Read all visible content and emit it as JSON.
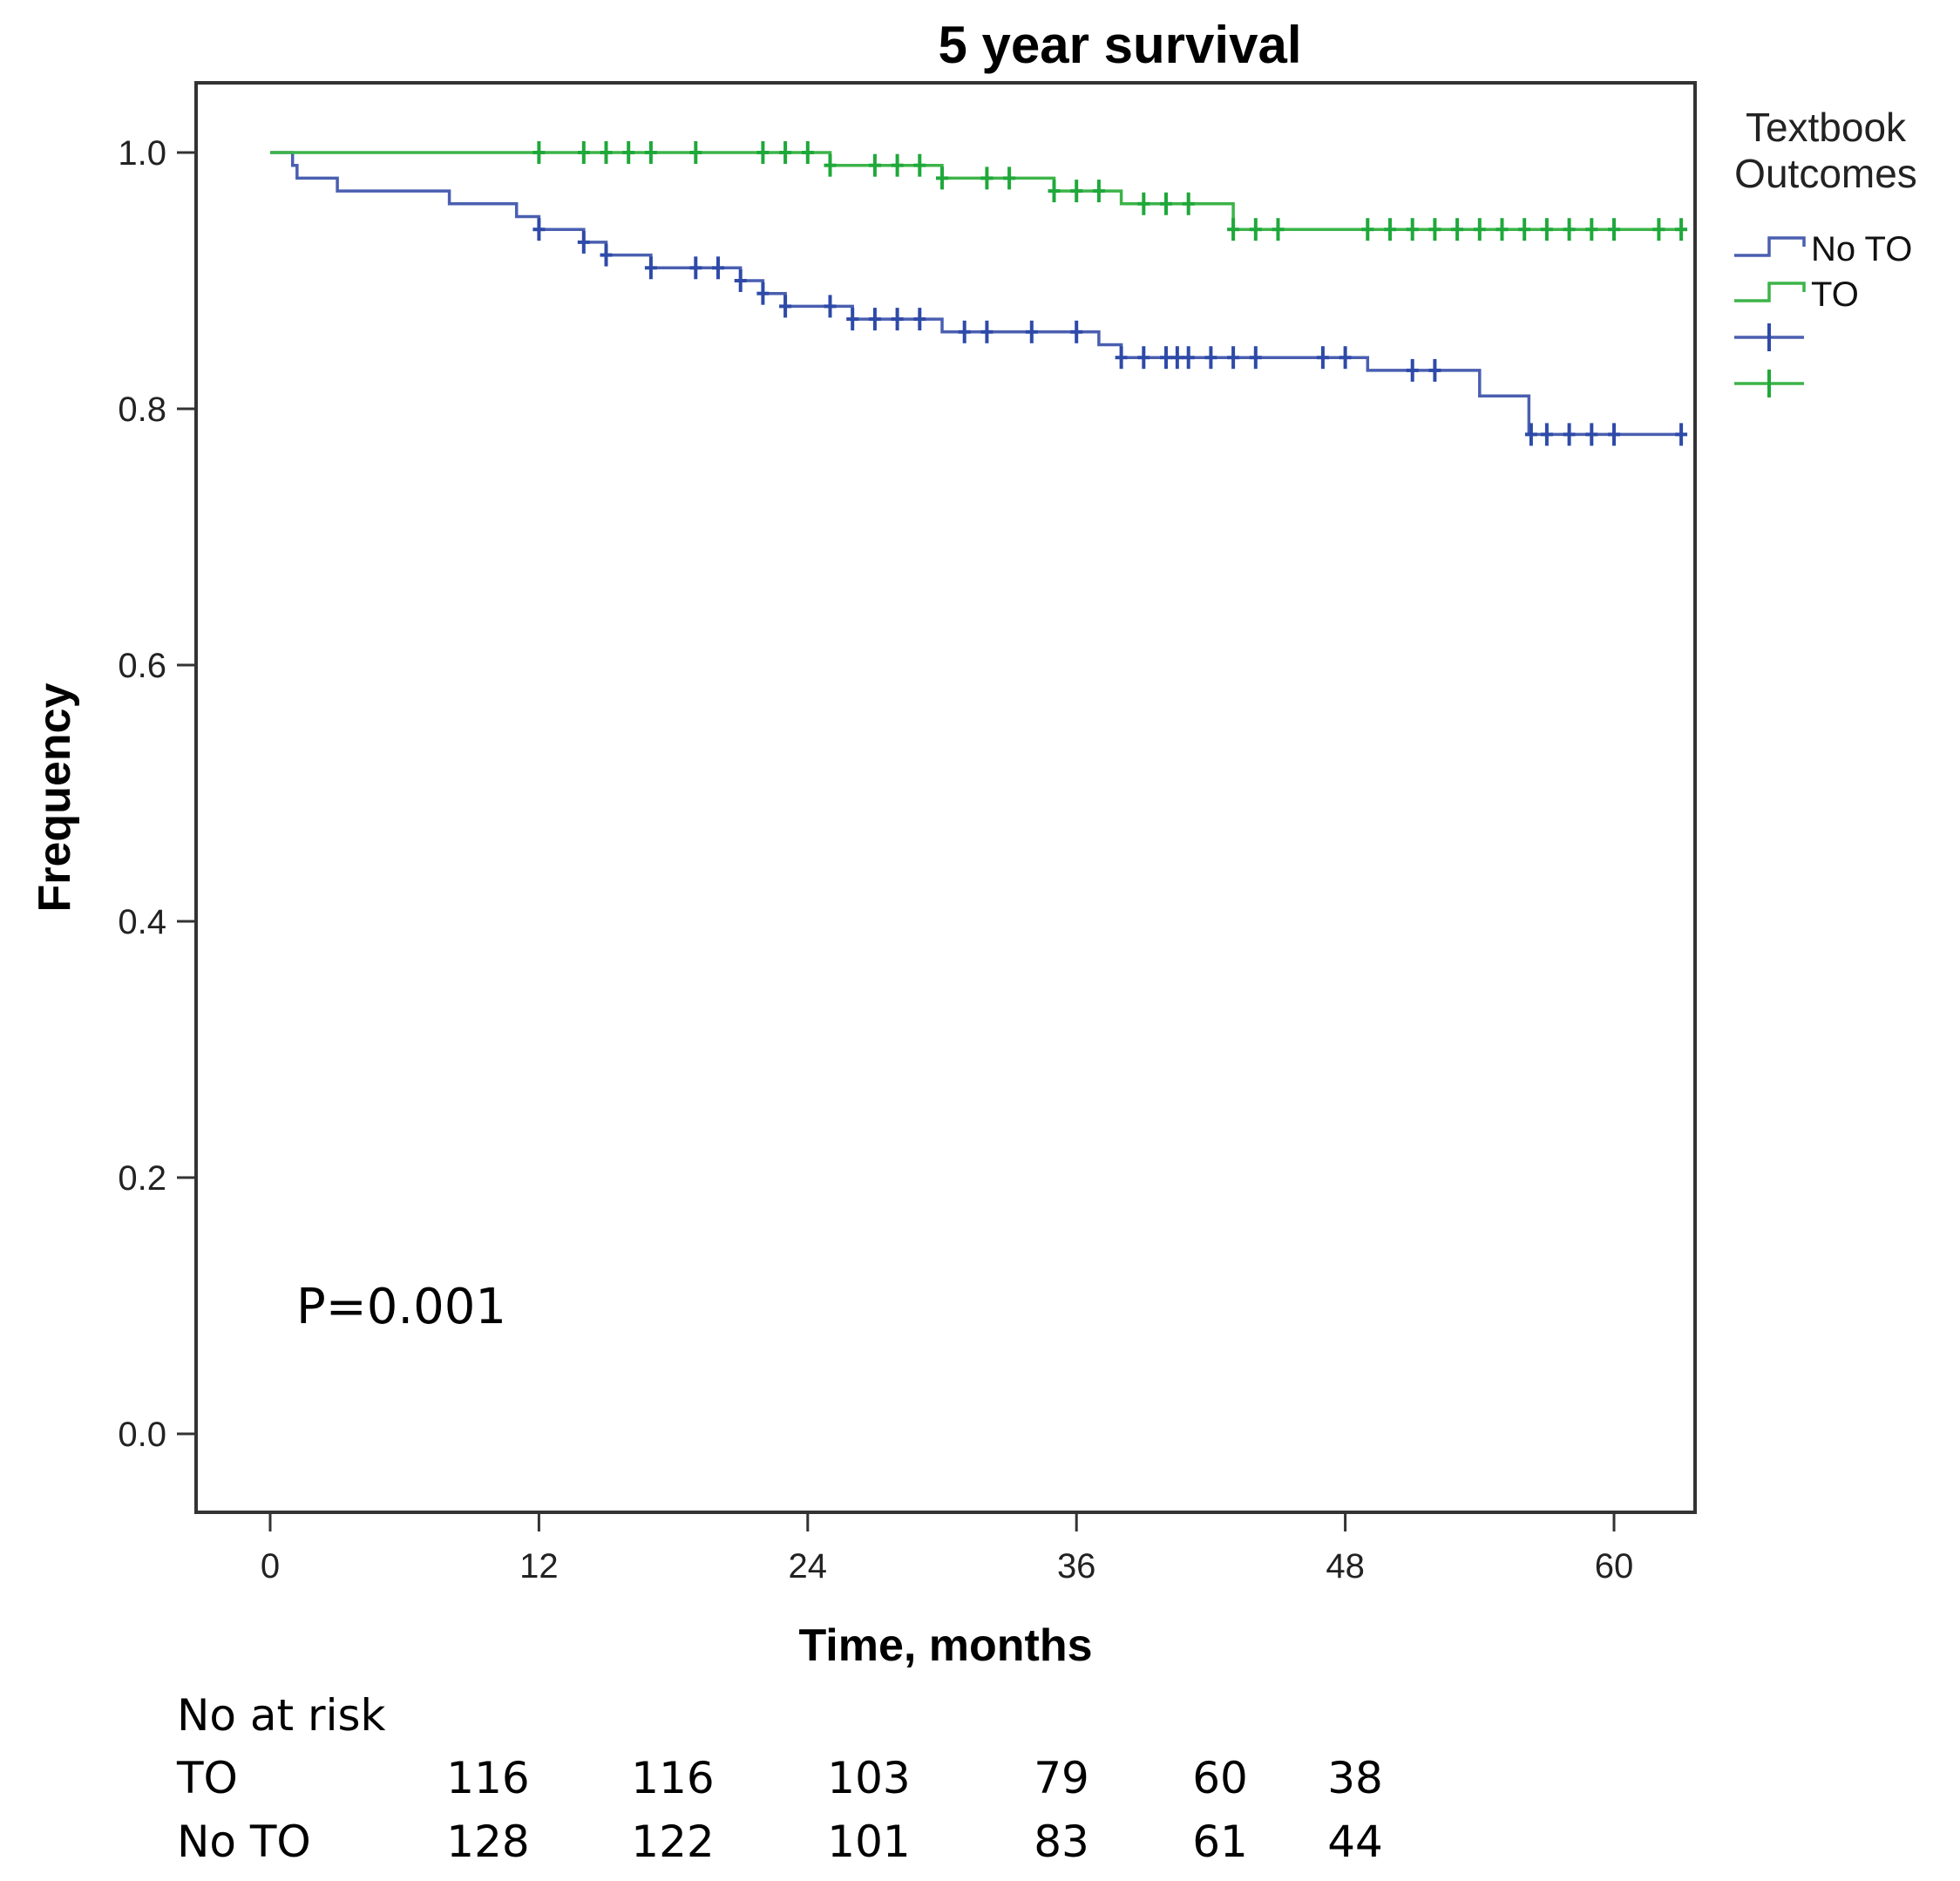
{
  "chart_data": {
    "type": "line",
    "subtype": "kaplan-meier",
    "title": "5 year survival",
    "xlabel": "Time, months",
    "ylabel": "Frequency",
    "xlim": [
      -4,
      63
    ],
    "ylim": [
      -0.05,
      1.05
    ],
    "xticks": [
      0,
      12,
      24,
      36,
      48,
      60
    ],
    "yticks": [
      0.0,
      0.2,
      0.4,
      0.6,
      0.8,
      1.0
    ],
    "xtick_labels": [
      "0",
      "12",
      "24",
      "36",
      "48",
      "60"
    ],
    "ytick_labels": [
      "0.0",
      "0.2",
      "0.4",
      "0.6",
      "0.8",
      "1.0"
    ],
    "legend": {
      "title_lines": [
        "Textbook",
        "Outcomes"
      ],
      "position": "right",
      "entries": [
        {
          "label": "No TO",
          "series": "No TO",
          "kind": "line"
        },
        {
          "label": "TO",
          "series": "TO",
          "kind": "line"
        },
        {
          "label": "",
          "series": "No TO",
          "kind": "censor"
        },
        {
          "label": "",
          "series": "TO",
          "kind": "censor"
        }
      ]
    },
    "series": [
      {
        "name": "No TO",
        "color": "#4a5fb0",
        "censor_color": "#2e4aa8",
        "steps": [
          [
            0,
            1.0
          ],
          [
            1,
            0.99
          ],
          [
            1.2,
            0.98
          ],
          [
            3,
            0.97
          ],
          [
            8,
            0.96
          ],
          [
            11,
            0.95
          ],
          [
            12,
            0.94
          ],
          [
            14,
            0.93
          ],
          [
            15,
            0.92
          ],
          [
            17,
            0.91
          ],
          [
            21,
            0.9
          ],
          [
            22,
            0.89
          ],
          [
            23,
            0.88
          ],
          [
            26,
            0.87
          ],
          [
            30,
            0.86
          ],
          [
            37,
            0.85
          ],
          [
            38,
            0.84
          ],
          [
            49,
            0.83
          ],
          [
            54,
            0.81
          ],
          [
            56.2,
            0.78
          ],
          [
            63,
            0.78
          ]
        ],
        "censored": [
          [
            12,
            0.94
          ],
          [
            14,
            0.93
          ],
          [
            15,
            0.92
          ],
          [
            17,
            0.91
          ],
          [
            19,
            0.91
          ],
          [
            20,
            0.91
          ],
          [
            21,
            0.9
          ],
          [
            22,
            0.89
          ],
          [
            23,
            0.88
          ],
          [
            25,
            0.88
          ],
          [
            26,
            0.87
          ],
          [
            27,
            0.87
          ],
          [
            28,
            0.87
          ],
          [
            29,
            0.87
          ],
          [
            31,
            0.86
          ],
          [
            32,
            0.86
          ],
          [
            34,
            0.86
          ],
          [
            36,
            0.86
          ],
          [
            38,
            0.84
          ],
          [
            39,
            0.84
          ],
          [
            40,
            0.84
          ],
          [
            40.5,
            0.84
          ],
          [
            41,
            0.84
          ],
          [
            42,
            0.84
          ],
          [
            43,
            0.84
          ],
          [
            44,
            0.84
          ],
          [
            47,
            0.84
          ],
          [
            48,
            0.84
          ],
          [
            51,
            0.83
          ],
          [
            52,
            0.83
          ],
          [
            56.3,
            0.78
          ],
          [
            57,
            0.78
          ],
          [
            58,
            0.78
          ],
          [
            59,
            0.78
          ],
          [
            60,
            0.78
          ],
          [
            63,
            0.78
          ]
        ]
      },
      {
        "name": "TO",
        "color": "#3cb449",
        "censor_color": "#1fa83a",
        "steps": [
          [
            0,
            1.0
          ],
          [
            25,
            0.99
          ],
          [
            30,
            0.98
          ],
          [
            35,
            0.97
          ],
          [
            38,
            0.96
          ],
          [
            43,
            0.94
          ],
          [
            63,
            0.94
          ]
        ],
        "censored": [
          [
            12,
            1.0
          ],
          [
            14,
            1.0
          ],
          [
            15,
            1.0
          ],
          [
            16,
            1.0
          ],
          [
            17,
            1.0
          ],
          [
            19,
            1.0
          ],
          [
            22,
            1.0
          ],
          [
            23,
            1.0
          ],
          [
            24,
            1.0
          ],
          [
            25,
            0.99
          ],
          [
            27,
            0.99
          ],
          [
            28,
            0.99
          ],
          [
            29,
            0.99
          ],
          [
            30,
            0.98
          ],
          [
            32,
            0.98
          ],
          [
            33,
            0.98
          ],
          [
            35,
            0.97
          ],
          [
            36,
            0.97
          ],
          [
            37,
            0.97
          ],
          [
            39,
            0.96
          ],
          [
            40,
            0.96
          ],
          [
            41,
            0.96
          ],
          [
            43,
            0.94
          ],
          [
            44,
            0.94
          ],
          [
            45,
            0.94
          ],
          [
            49,
            0.94
          ],
          [
            50,
            0.94
          ],
          [
            51,
            0.94
          ],
          [
            52,
            0.94
          ],
          [
            53,
            0.94
          ],
          [
            54,
            0.94
          ],
          [
            55,
            0.94
          ],
          [
            56,
            0.94
          ],
          [
            57,
            0.94
          ],
          [
            58,
            0.94
          ],
          [
            59,
            0.94
          ],
          [
            60,
            0.94
          ],
          [
            62,
            0.94
          ],
          [
            63,
            0.94
          ]
        ]
      }
    ],
    "annotation": "P=0.001"
  },
  "risk_table": {
    "header": "No at risk",
    "rows": [
      {
        "label": "TO",
        "values": [
          "116",
          "116",
          "103",
          "79",
          "60",
          "38"
        ]
      },
      {
        "label": "No TO",
        "values": [
          "128",
          "122",
          "101",
          "83",
          "61",
          "44"
        ]
      }
    ]
  }
}
